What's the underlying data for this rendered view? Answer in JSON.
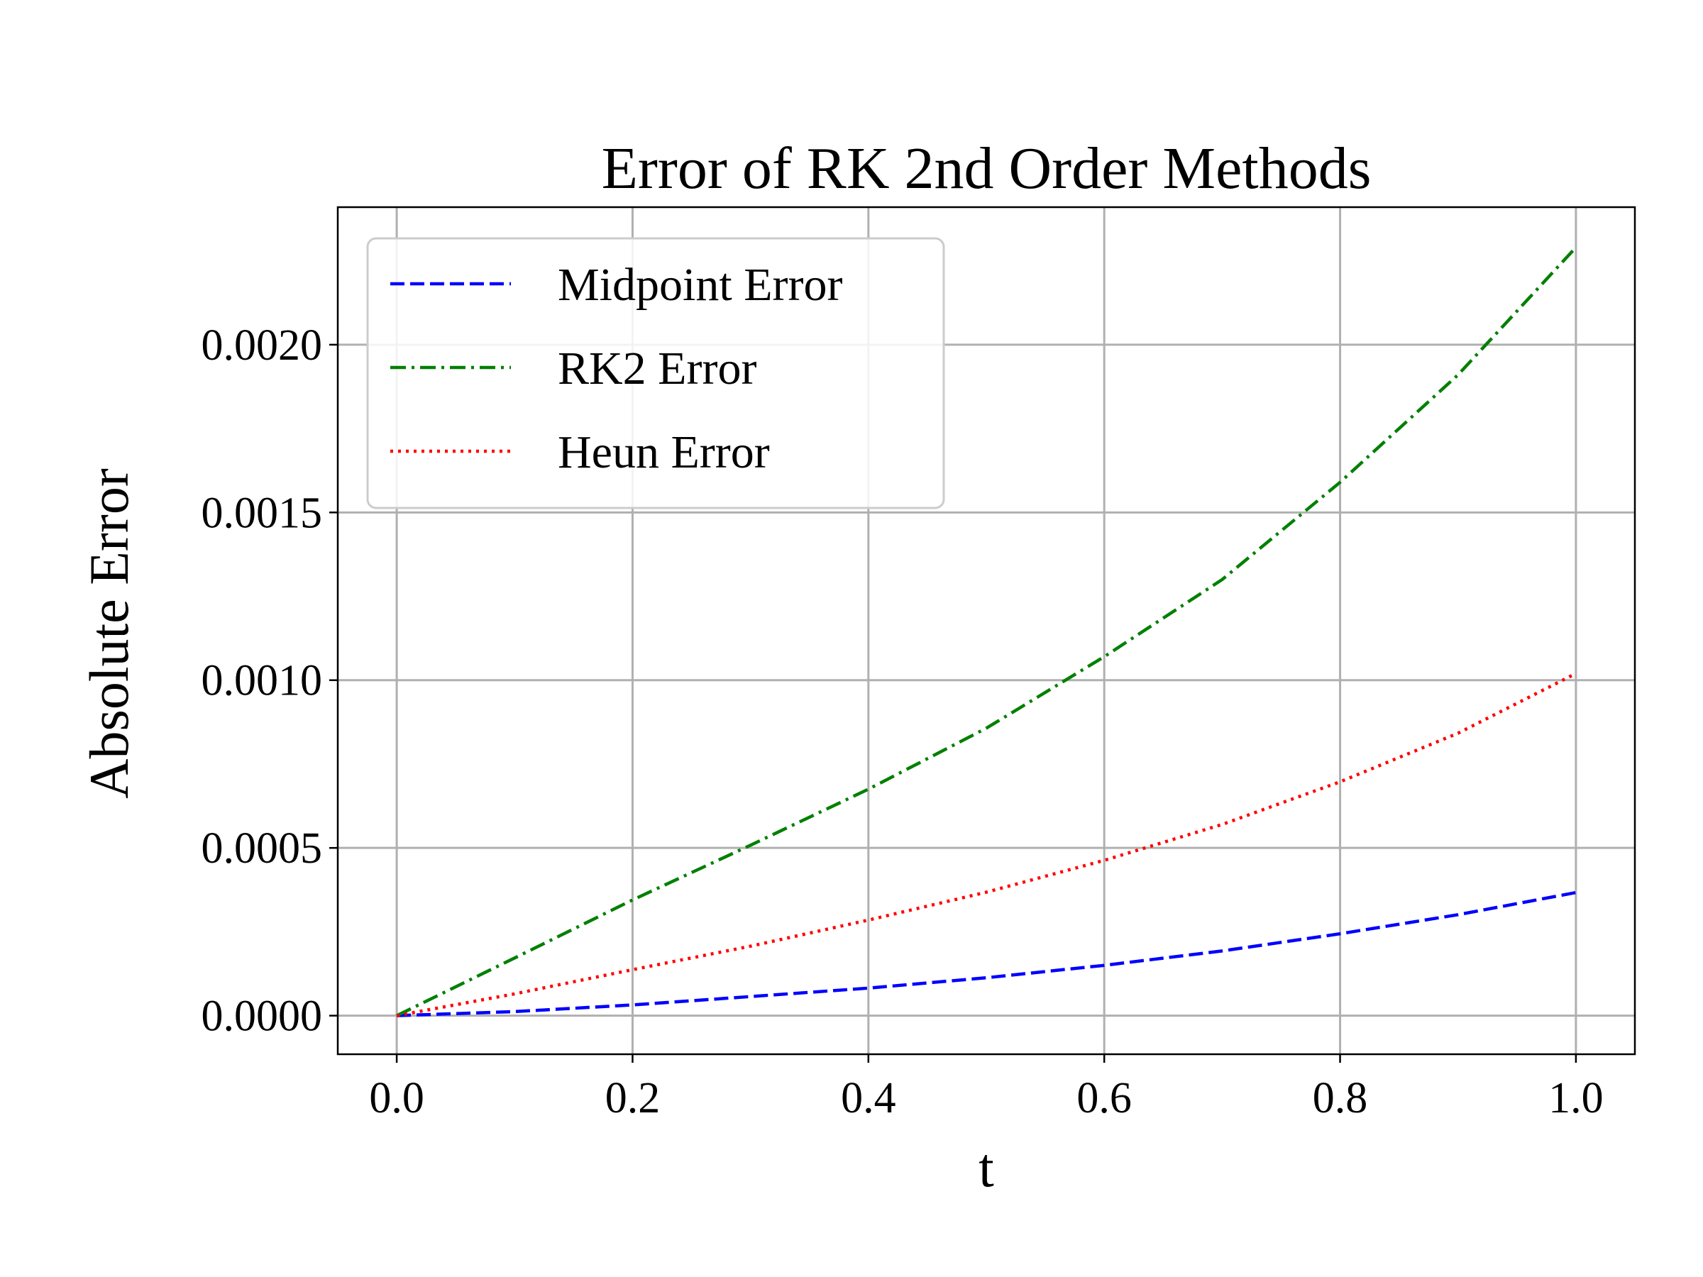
{
  "chart_data": {
    "type": "line",
    "title": "Error of RK 2nd Order Methods",
    "xlabel": "t",
    "ylabel": "Absolute Error",
    "xlim": [
      -0.05,
      1.05
    ],
    "ylim": [
      -0.000115,
      0.00241
    ],
    "xticks": [
      0.0,
      0.2,
      0.4,
      0.6,
      0.8,
      1.0
    ],
    "xtick_labels": [
      "0.0",
      "0.2",
      "0.4",
      "0.6",
      "0.8",
      "1.0"
    ],
    "yticks": [
      0.0,
      0.0005,
      0.001,
      0.0015,
      0.002
    ],
    "ytick_labels": [
      "0.0000",
      "0.0005",
      "0.0010",
      "0.0015",
      "0.0020"
    ],
    "grid": true,
    "legend_position": "top-left",
    "x": [
      0.0,
      0.1,
      0.2,
      0.3,
      0.4,
      0.5,
      0.6,
      0.7,
      0.8,
      0.9,
      1.0
    ],
    "series": [
      {
        "name": "Midpoint Error",
        "color": "#0000ff",
        "dash": "dashed",
        "values": [
          0.0,
          1.2e-05,
          3.2e-05,
          5.7e-05,
          8.2e-05,
          0.000113,
          0.00015,
          0.000193,
          0.000244,
          0.000301,
          0.000367
        ]
      },
      {
        "name": "RK2 Error",
        "color": "#008000",
        "dash": "dashdot",
        "values": [
          0.0,
          0.000172,
          0.000345,
          0.000508,
          0.000675,
          0.000857,
          0.00107,
          0.0013,
          0.00159,
          0.00191,
          0.00229
        ]
      },
      {
        "name": "Heun Error",
        "color": "#ff0000",
        "dash": "dotted",
        "values": [
          0.0,
          6.5e-05,
          0.000137,
          0.000207,
          0.000285,
          0.000368,
          0.000463,
          0.00057,
          0.000697,
          0.000842,
          0.00102
        ]
      }
    ]
  }
}
